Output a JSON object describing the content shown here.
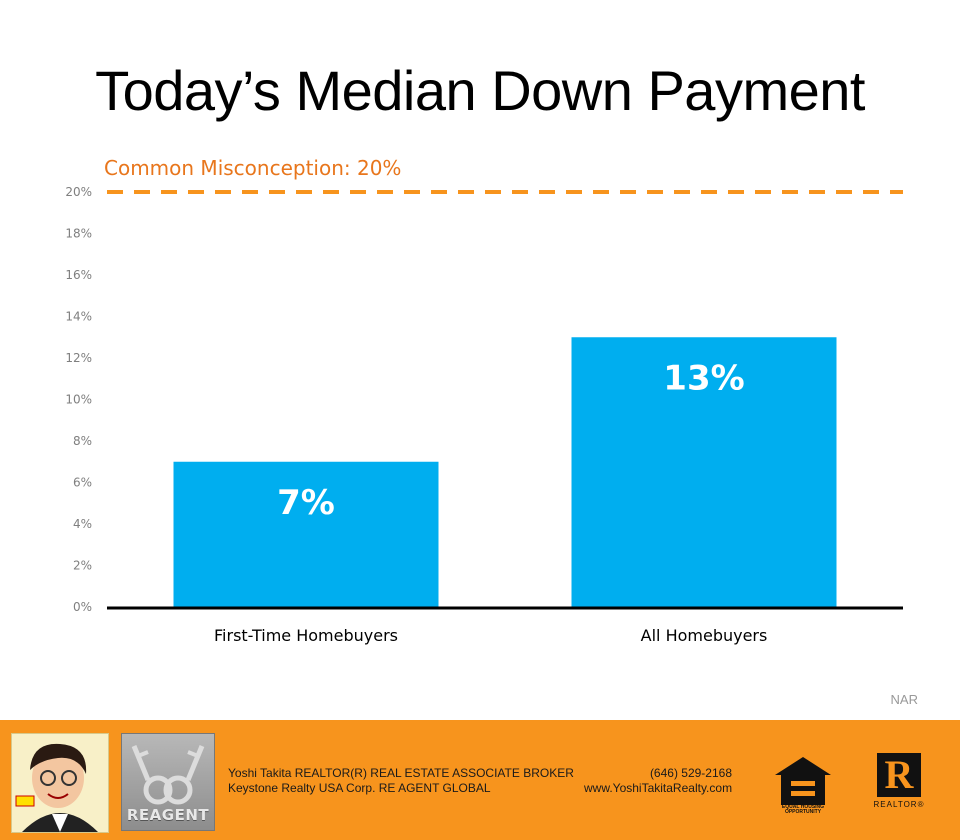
{
  "header": {
    "title": "Today’s Median Down Payment"
  },
  "chart_data": {
    "type": "bar",
    "categories": [
      "First-Time Homebuyers",
      "All Homebuyers"
    ],
    "values": [
      7,
      13
    ],
    "data_labels": [
      "7%",
      "13%"
    ],
    "ylim": [
      0,
      20
    ],
    "yticks": [
      "0%",
      "2%",
      "4%",
      "6%",
      "8%",
      "10%",
      "12%",
      "14%",
      "16%",
      "18%",
      "20%"
    ],
    "reference_line": {
      "value": 20,
      "label": "Common Misconception: 20%"
    },
    "grid": false,
    "colors": {
      "bar": "#00aeef",
      "reference": "#f7941d",
      "axis": "#000000"
    }
  },
  "source": "NAR",
  "footer": {
    "line1_left": "Yoshi Takita REALTOR(R) REAL ESTATE ASSOCIATE BROKER",
    "line2_left": "Keystone Realty USA Corp.  RE AGENT GLOBAL",
    "line1_right": "(646) 529-2168",
    "line2_right": "www.YoshiTakitaRealty.com",
    "reagent_logo": "REAGENT",
    "eho_text": "EQUAL HOUSING OPPORTUNITY",
    "realtor_mark": "R",
    "realtor_text": "REALTOR®",
    "background": "#f7941d"
  }
}
